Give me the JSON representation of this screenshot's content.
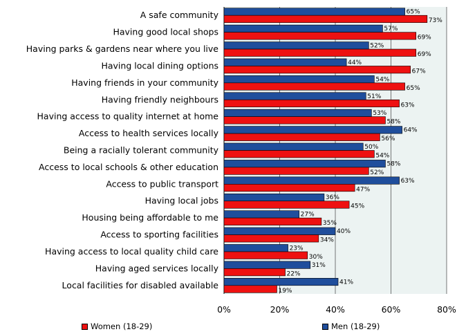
{
  "chart_data": {
    "type": "bar",
    "orientation": "horizontal",
    "categories": [
      "A safe community",
      "Having good local shops",
      "Having parks & gardens near where you live",
      "Having local dining options",
      "Having friends in your community",
      "Having friendly neighbours",
      "Having access to quality internet at home",
      "Access to health services locally",
      "Being a racially tolerant community",
      "Access to local schools & other education",
      "Access to public transport",
      "Having local jobs",
      "Housing being affordable to me",
      "Access to sporting facilities",
      "Having access to local quality child care",
      "Having aged services locally",
      "Local facilities for disabled available"
    ],
    "series": [
      {
        "name": "Men (18-29)",
        "color": "#1f4e9c",
        "values": [
          65,
          57,
          52,
          44,
          54,
          51,
          53,
          64,
          50,
          58,
          63,
          36,
          27,
          40,
          23,
          31,
          41
        ],
        "labels": [
          "65%",
          "57%",
          "52%",
          "44%",
          "54%",
          "51%",
          "53%",
          "64%",
          "50%",
          "58%",
          "63%",
          "36%",
          "27%",
          "40%",
          "23%",
          "31%",
          "41%"
        ]
      },
      {
        "name": "Women (18-29)",
        "color": "#ee1111",
        "values": [
          73,
          69,
          69,
          67,
          65,
          63,
          58,
          56,
          54,
          52,
          47,
          45,
          35,
          34,
          30,
          22,
          19
        ],
        "labels": [
          "73%",
          "69%",
          "69%",
          "67%",
          "65%",
          "63%",
          "58%",
          "56%",
          "54%",
          "52%",
          "47%",
          "45%",
          "35%",
          "34%",
          "30%",
          "22%",
          "19%"
        ]
      }
    ],
    "xlim": [
      0,
      80
    ],
    "xticks": [
      0,
      20,
      40,
      60,
      80
    ],
    "xtick_labels": [
      "0%",
      "20%",
      "40%",
      "60%",
      "80%"
    ],
    "grid": true,
    "plot_background": "#ecf3f2",
    "legend_position": "bottom"
  },
  "legend": {
    "women": "Women (18-29)",
    "men": "Men (18-29)"
  }
}
